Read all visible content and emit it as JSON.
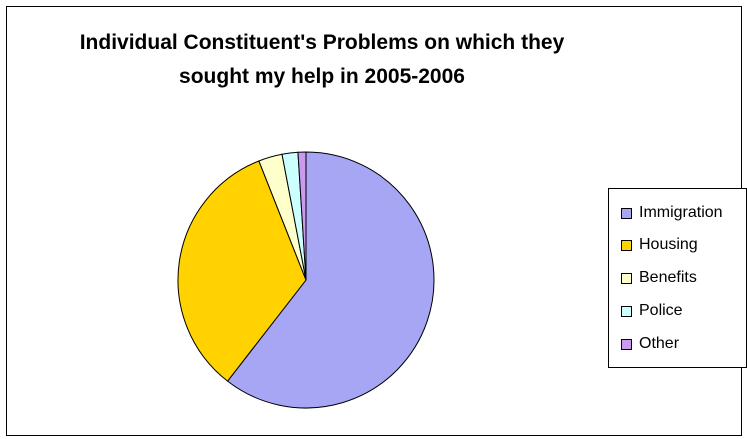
{
  "chart_data": {
    "type": "pie",
    "title_lines": [
      "Individual Constituent's Problems on which they",
      "sought my help in 2005-2006"
    ],
    "categories": [
      "Immigration",
      "Housing",
      "Benefits",
      "Police",
      "Other"
    ],
    "values": [
      60.5,
      33.5,
      3.0,
      2.0,
      1.0
    ],
    "colors": [
      "#A6A6F5",
      "#FFD200",
      "#FFFFCC",
      "#CCFFFF",
      "#C99AF0"
    ],
    "legend_position": "right"
  }
}
